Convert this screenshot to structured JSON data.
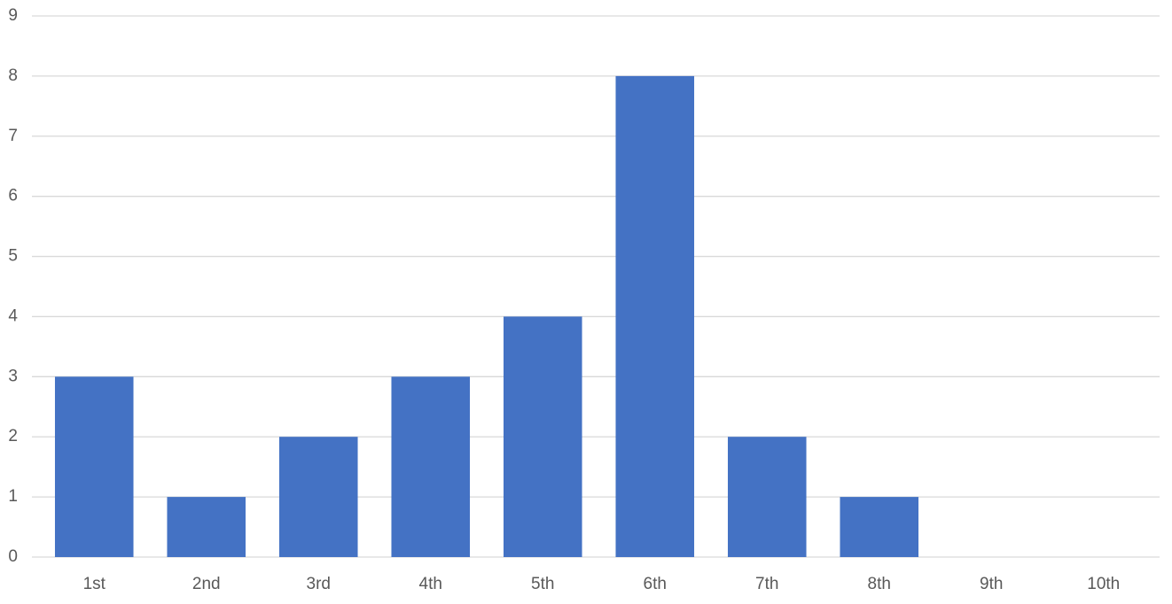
{
  "chart_data": {
    "type": "bar",
    "categories": [
      "1st",
      "2nd",
      "3rd",
      "4th",
      "5th",
      "6th",
      "7th",
      "8th",
      "9th",
      "10th"
    ],
    "values": [
      3,
      1,
      2,
      3,
      4,
      8,
      2,
      1,
      0,
      0
    ],
    "color": "#4472c4",
    "ylim": [
      0,
      9
    ],
    "yticks": [
      0,
      1,
      2,
      3,
      4,
      5,
      6,
      7,
      8,
      9
    ],
    "grid": true
  }
}
